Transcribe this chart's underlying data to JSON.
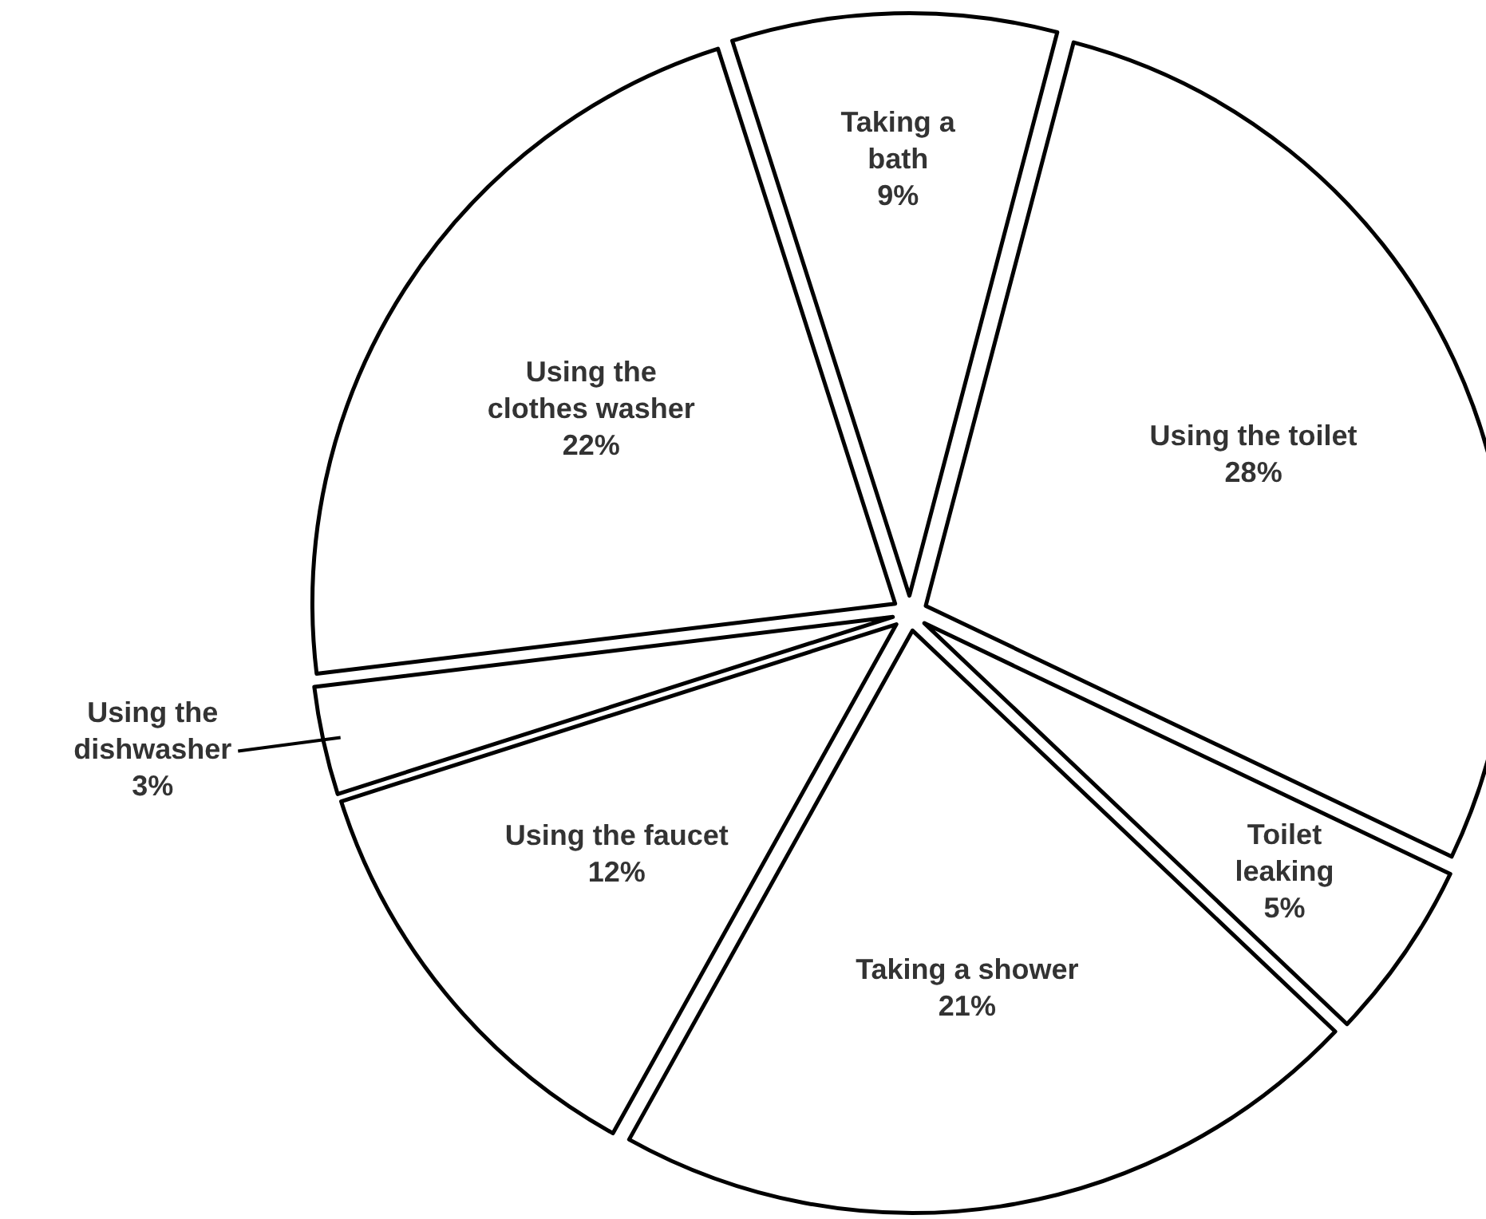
{
  "chart_data": {
    "type": "pie",
    "categories": [
      "Taking a bath",
      "Using the toilet",
      "Toilet leaking",
      "Taking a shower",
      "Using the faucet",
      "Using the dishwasher",
      "Using the clothes washer"
    ],
    "values": [
      9,
      28,
      5,
      21,
      12,
      3,
      22
    ],
    "colors": [
      "#ffffff",
      "#ffffff",
      "#ffffff",
      "#ffffff",
      "#ffffff",
      "#ffffff",
      "#ffffff"
    ],
    "value_labels": [
      "9%",
      "28%",
      "5%",
      "21%",
      "12%",
      "3%",
      "22%"
    ]
  }
}
